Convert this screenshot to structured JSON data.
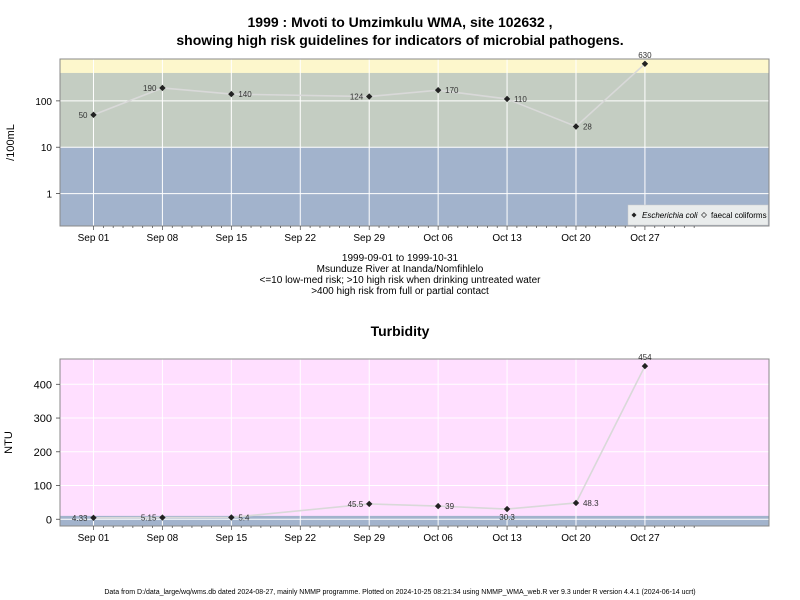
{
  "colors": {
    "band_low": "#a2b3cc",
    "band_medium": "#c4cdc2",
    "band_high": "#fdf7cc",
    "turbidity_bg": "#ffdfff",
    "turbidity_band_low": "#a2b3cc",
    "grid": "#ffffff",
    "line": "#d9d9d9",
    "point": "#222222"
  },
  "header": {
    "title_line1": "1999 : Mvoti to Umzimkulu WMA, site 102632 ,",
    "title_line2": "showing high risk guidelines for indicators of microbial pathogens."
  },
  "subtitle": {
    "line1": "1999-09-01 to 1999-10-31",
    "line2": "Msunduze River at Inanda/Nomfihlelo",
    "line3": "<=10 low-med risk; >10 high risk when drinking untreated water",
    "line4": ">400 high risk from full or partial contact"
  },
  "legend": {
    "ecoli": "Escherichia coli",
    "faecal": "faecal coliforms"
  },
  "footer": "Data from D:/data_large/wq/wms.db dated 2024-08-27, mainly NMMP programme. Plotted on 2024-10-25 08:21:34 using NMMP_WMA_web.R ver 9.3 under R version 4.4.1 (2024-06-14 ucrt)",
  "chart_data": [
    {
      "type": "line",
      "ylabel": "/100mL",
      "yscale": "log",
      "yticks": [
        "1",
        "10",
        "100"
      ],
      "ylim": [
        0.2,
        800
      ],
      "bands": [
        {
          "from": 0.2,
          "to": 10,
          "color_key": "band_low"
        },
        {
          "from": 10,
          "to": 400,
          "color_key": "band_medium"
        },
        {
          "from": 400,
          "to": 800,
          "color_key": "band_high"
        }
      ],
      "xticks": [
        "Sep 01",
        "Sep 08",
        "Sep 15",
        "Sep 22",
        "Sep 29",
        "Oct 06",
        "Oct 13",
        "Oct 20",
        "Oct 27"
      ],
      "legend_position": "bottom-right",
      "grid": true,
      "series": [
        {
          "name": "Escherichia coli",
          "x": [
            "1999-09-01",
            "1999-09-08",
            "1999-09-15",
            "1999-09-29",
            "1999-10-06",
            "1999-10-13",
            "1999-10-20",
            "1999-10-27"
          ],
          "y": [
            50,
            190,
            140,
            124,
            170,
            110,
            28,
            630
          ],
          "labels": [
            "50",
            "190",
            "140",
            "124",
            "170",
            "110",
            "28",
            "630"
          ],
          "label_pos": [
            "left",
            "left",
            "right",
            "left",
            "right",
            "right",
            "right",
            "top"
          ]
        }
      ]
    },
    {
      "type": "line",
      "title": "Turbidity",
      "ylabel": "NTU",
      "yticks": [
        "0",
        "100",
        "200",
        "300",
        "400"
      ],
      "ylim": [
        -20,
        475
      ],
      "bands": [
        {
          "from": -20,
          "to": 10,
          "color_key": "turbidity_band_low"
        }
      ],
      "xticks": [
        "Sep 01",
        "Sep 08",
        "Sep 15",
        "Sep 22",
        "Sep 29",
        "Oct 06",
        "Oct 13",
        "Oct 20",
        "Oct 27"
      ],
      "grid": true,
      "series": [
        {
          "x": [
            "1999-09-01",
            "1999-09-08",
            "1999-09-15",
            "1999-09-29",
            "1999-10-06",
            "1999-10-13",
            "1999-10-20",
            "1999-10-27"
          ],
          "y": [
            4.33,
            5.15,
            5.4,
            45.5,
            39,
            30.3,
            48.3,
            454
          ],
          "labels": [
            "4.33",
            "5.15",
            "5.4",
            "45.5",
            "39",
            "30.3",
            "48.3",
            "454"
          ],
          "label_pos": [
            "left",
            "left",
            "right",
            "left",
            "right",
            "bottom",
            "right",
            "top"
          ]
        }
      ]
    }
  ]
}
